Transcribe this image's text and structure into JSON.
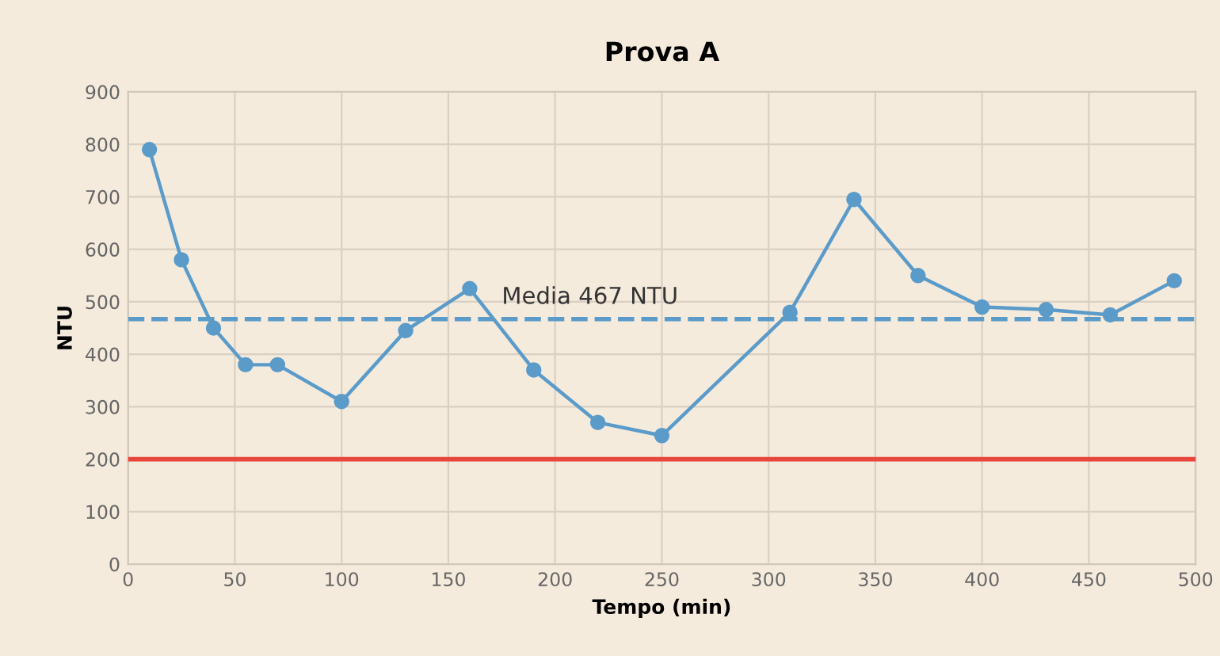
{
  "chart_data": {
    "type": "line",
    "title": "Prova A",
    "xlabel": "Tempo (min)",
    "ylabel": "NTU",
    "x": [
      10,
      25,
      40,
      55,
      70,
      100,
      130,
      160,
      190,
      220,
      250,
      310,
      340,
      370,
      400,
      430,
      460,
      490
    ],
    "series": [
      {
        "color": "#5b9bc9",
        "values": [
          790,
          580,
          450,
          380,
          380,
          310,
          445,
          525,
          370,
          270,
          245,
          480,
          695,
          550,
          490,
          485,
          475,
          540
        ]
      }
    ],
    "marker": "circle",
    "line_style": "solid",
    "xlim": [
      0,
      500
    ],
    "xticks": [
      0,
      50,
      100,
      150,
      200,
      250,
      300,
      350,
      400,
      450,
      500
    ],
    "ylim": [
      0,
      900
    ],
    "yticks": [
      0,
      100,
      200,
      300,
      400,
      500,
      600,
      700,
      800,
      900
    ],
    "grid": true,
    "ref_lines": [
      {
        "axis": "y",
        "value": 467,
        "label": "Media 467 NTU",
        "color": "#5b9bc9",
        "line_style": "dashed"
      },
      {
        "axis": "y",
        "value": 200,
        "color": "#e8463c",
        "line_style": "solid"
      }
    ]
  }
}
